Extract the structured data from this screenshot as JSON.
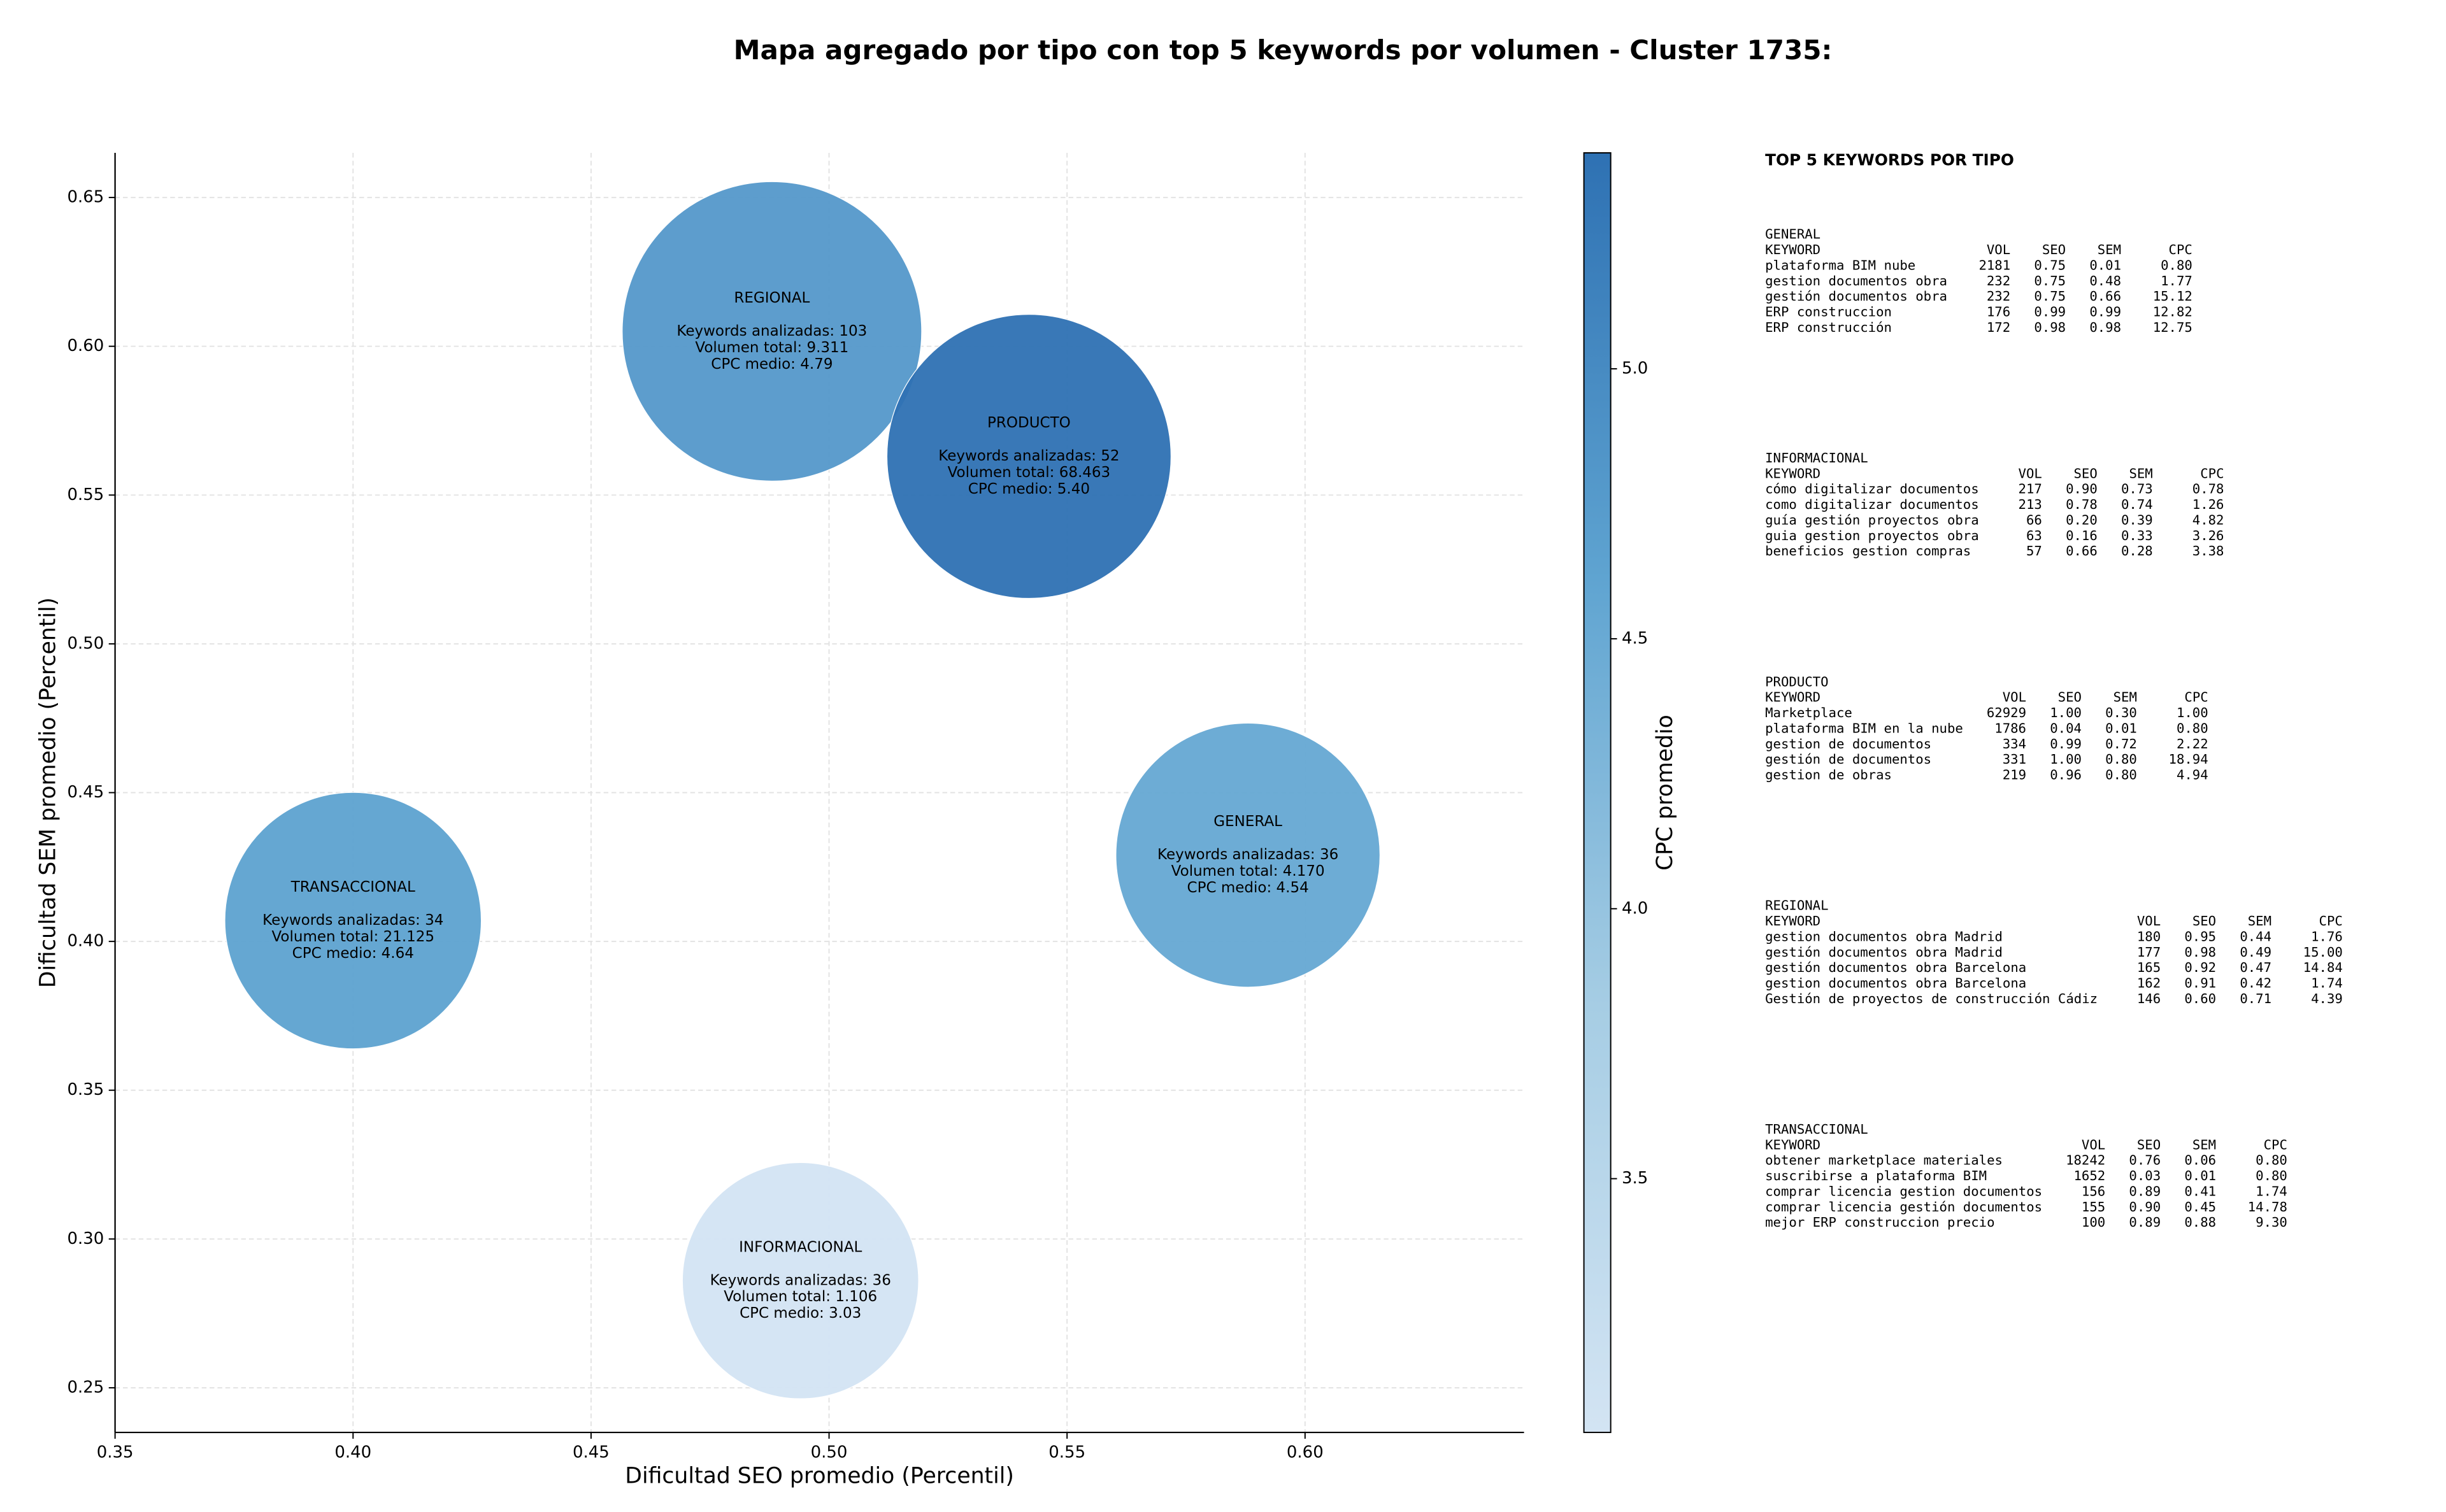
{
  "chart_data": {
    "type": "bubble",
    "title": "Mapa agregado por tipo con top 5 keywords por volumen - Cluster 1735:",
    "x_label": "Dificultad SEO promedio (Percentil)",
    "y_label": "Dificultad SEM promedio (Percentil)",
    "colorbar_label": "CPC promedio",
    "x": [
      0.488,
      0.542,
      0.588,
      0.4,
      0.494
    ],
    "y": [
      0.605,
      0.563,
      0.429,
      0.407,
      0.286
    ],
    "sizes": [
      9000,
      8100,
      7000,
      6600,
      5600
    ],
    "c": [
      4.79,
      5.4,
      4.54,
      4.64,
      3.03
    ],
    "annotations": [
      [
        "REGIONAL",
        "Keywords analizadas: 103",
        "Volumen total: 9.311",
        "CPC medio: 4.79"
      ],
      [
        "PRODUCTO",
        "Keywords analizadas: 52",
        "Volumen total: 68.463",
        "CPC medio: 5.40"
      ],
      [
        "GENERAL",
        "Keywords analizadas: 36",
        "Volumen total: 4.170",
        "CPC medio: 4.54"
      ],
      [
        "TRANSACCIONAL",
        "Keywords analizadas: 34",
        "Volumen total: 21.125",
        "CPC medio: 4.64"
      ],
      [
        "INFORMACIONAL",
        "Keywords analizadas: 36",
        "Volumen total: 1.106",
        "CPC medio: 3.03"
      ]
    ],
    "xlim": [
      0.35,
      0.646
    ],
    "ylim": [
      0.235,
      0.665
    ],
    "xticks": [
      {
        "value": 0.35,
        "label": "0.35"
      },
      {
        "value": 0.4,
        "label": "0.40"
      },
      {
        "value": 0.45,
        "label": "0.45"
      },
      {
        "value": 0.5,
        "label": "0.50"
      },
      {
        "value": 0.55,
        "label": "0.55"
      },
      {
        "value": 0.6,
        "label": "0.60"
      }
    ],
    "yticks": [
      {
        "value": 0.25,
        "label": "0.25"
      },
      {
        "value": 0.3,
        "label": "0.30"
      },
      {
        "value": 0.35,
        "label": "0.35"
      },
      {
        "value": 0.4,
        "label": "0.40"
      },
      {
        "value": 0.45,
        "label": "0.45"
      },
      {
        "value": 0.5,
        "label": "0.50"
      },
      {
        "value": 0.55,
        "label": "0.55"
      },
      {
        "value": 0.6,
        "label": "0.60"
      },
      {
        "value": 0.65,
        "label": "0.65"
      }
    ],
    "clim": [
      3.03,
      5.4
    ],
    "cticks": [
      {
        "value": 3.5,
        "label": "3.5"
      },
      {
        "value": 4.0,
        "label": "4.0"
      },
      {
        "value": 4.5,
        "label": "4.5"
      },
      {
        "value": 5.0,
        "label": "5.0"
      }
    ],
    "colormap": [
      "#d3e4f3",
      "#a6cde4",
      "#5fa4d1",
      "#2e71b3"
    ],
    "grid": true
  },
  "side_panel": {
    "title": "TOP 5 KEYWORDS POR TIPO",
    "header": [
      "KEYWORD",
      "VOL",
      "SEO",
      "SEM",
      "CPC"
    ],
    "tables": [
      {
        "name": "GENERAL",
        "rows": [
          [
            "plataforma BIM nube",
            "2181",
            "0.75",
            "0.01",
            "0.80"
          ],
          [
            "gestion documentos obra",
            "232",
            "0.75",
            "0.48",
            "1.77"
          ],
          [
            "gestión documentos obra",
            "232",
            "0.75",
            "0.66",
            "15.12"
          ],
          [
            "ERP construccion",
            "176",
            "0.99",
            "0.99",
            "12.82"
          ],
          [
            "ERP construcción",
            "172",
            "0.98",
            "0.98",
            "12.75"
          ]
        ]
      },
      {
        "name": "INFORMACIONAL",
        "rows": [
          [
            "cómo digitalizar documentos",
            "217",
            "0.90",
            "0.73",
            "0.78"
          ],
          [
            "como digitalizar documentos",
            "213",
            "0.78",
            "0.74",
            "1.26"
          ],
          [
            "guía gestión proyectos obra",
            "66",
            "0.20",
            "0.39",
            "4.82"
          ],
          [
            "guia gestion proyectos obra",
            "63",
            "0.16",
            "0.33",
            "3.26"
          ],
          [
            "beneficios gestion compras",
            "57",
            "0.66",
            "0.28",
            "3.38"
          ]
        ]
      },
      {
        "name": "PRODUCTO",
        "rows": [
          [
            "Marketplace",
            "62929",
            "1.00",
            "0.30",
            "1.00"
          ],
          [
            "plataforma BIM en la nube",
            "1786",
            "0.04",
            "0.01",
            "0.80"
          ],
          [
            "gestion de documentos",
            "334",
            "0.99",
            "0.72",
            "2.22"
          ],
          [
            "gestión de documentos",
            "331",
            "1.00",
            "0.80",
            "18.94"
          ],
          [
            "gestion de obras",
            "219",
            "0.96",
            "0.80",
            "4.94"
          ]
        ]
      },
      {
        "name": "REGIONAL",
        "rows": [
          [
            "gestion documentos obra Madrid",
            "180",
            "0.95",
            "0.44",
            "1.76"
          ],
          [
            "gestión documentos obra Madrid",
            "177",
            "0.98",
            "0.49",
            "15.00"
          ],
          [
            "gestión documentos obra Barcelona",
            "165",
            "0.92",
            "0.47",
            "14.84"
          ],
          [
            "gestion documentos obra Barcelona",
            "162",
            "0.91",
            "0.42",
            "1.74"
          ],
          [
            "Gestión de proyectos de construcción Cádiz",
            "146",
            "0.60",
            "0.71",
            "4.39"
          ]
        ]
      },
      {
        "name": "TRANSACCIONAL",
        "rows": [
          [
            "obtener marketplace materiales",
            "18242",
            "0.76",
            "0.06",
            "0.80"
          ],
          [
            "suscribirse a plataforma BIM",
            "1652",
            "0.03",
            "0.01",
            "0.80"
          ],
          [
            "comprar licencia gestion documentos",
            "156",
            "0.89",
            "0.41",
            "1.74"
          ],
          [
            "comprar licencia gestión documentos",
            "155",
            "0.90",
            "0.45",
            "14.78"
          ],
          [
            "mejor ERP construccion precio",
            "100",
            "0.89",
            "0.88",
            "9.30"
          ]
        ]
      }
    ]
  }
}
